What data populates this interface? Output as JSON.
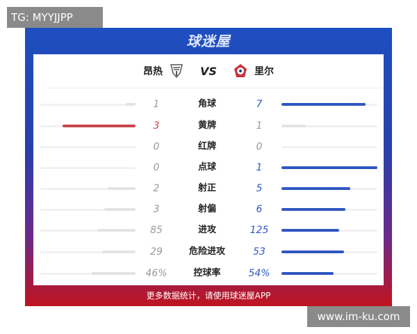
{
  "watermark_top": "TG: MYYJJPP",
  "watermark_bottom": "www.im-ku.com",
  "brand": "球迷屋",
  "home_team": "昂热",
  "vs": "VS",
  "away_team": "里尔",
  "colors": {
    "home": "#c9464b",
    "away": "#2f57c0",
    "neutral": "#e3e3e3"
  },
  "stats": [
    {
      "label": "角球",
      "home": "1",
      "away": "7",
      "home_frac": 0.1,
      "away_frac": 0.88,
      "leader": "away"
    },
    {
      "label": "黄牌",
      "home": "3",
      "away": "1",
      "home_frac": 0.77,
      "away_frac": 0.25,
      "leader": "home"
    },
    {
      "label": "红牌",
      "home": "0",
      "away": "0",
      "home_frac": 0,
      "away_frac": 0,
      "leader": "none"
    },
    {
      "label": "点球",
      "home": "0",
      "away": "1",
      "home_frac": 0,
      "away_frac": 1.0,
      "leader": "away"
    },
    {
      "label": "射正",
      "home": "2",
      "away": "5",
      "home_frac": 0.29,
      "away_frac": 0.72,
      "leader": "away"
    },
    {
      "label": "射偏",
      "home": "3",
      "away": "6",
      "home_frac": 0.33,
      "away_frac": 0.67,
      "leader": "away"
    },
    {
      "label": "进攻",
      "home": "85",
      "away": "125",
      "home_frac": 0.4,
      "away_frac": 0.6,
      "leader": "away"
    },
    {
      "label": "危险进攻",
      "home": "29",
      "away": "53",
      "home_frac": 0.35,
      "away_frac": 0.65,
      "leader": "away"
    },
    {
      "label": "控球率",
      "home": "46%",
      "away": "54%",
      "home_frac": 0.46,
      "away_frac": 0.54,
      "leader": "away"
    }
  ],
  "footer": "更多数据统计，请使用球迷屋APP"
}
